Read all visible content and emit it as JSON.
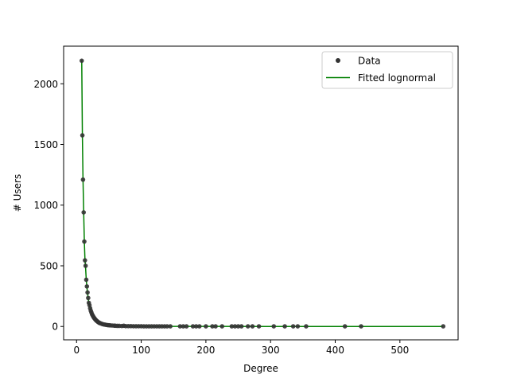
{
  "chart_data": {
    "type": "scatter",
    "title": "",
    "xlabel": "Degree",
    "ylabel": "# Users",
    "xlim": [
      -20,
      590
    ],
    "ylim": [
      -110,
      2310
    ],
    "xticks": [
      0,
      100,
      200,
      300,
      400,
      500
    ],
    "yticks": [
      0,
      500,
      1000,
      1500,
      2000
    ],
    "grid": false,
    "legend": {
      "placement": "top-right",
      "entries": [
        "Data",
        "Fitted lognormal"
      ]
    },
    "series": [
      {
        "name": "Data",
        "kind": "scatter",
        "color": "#333333",
        "points": [
          [
            8,
            2190
          ],
          [
            9,
            1575
          ],
          [
            10,
            1210
          ],
          [
            11,
            940
          ],
          [
            12,
            700
          ],
          [
            13,
            545
          ],
          [
            14,
            500
          ],
          [
            15,
            385
          ],
          [
            16,
            330
          ],
          [
            17,
            280
          ],
          [
            18,
            235
          ],
          [
            19,
            195
          ],
          [
            20,
            175
          ],
          [
            21,
            150
          ],
          [
            22,
            130
          ],
          [
            23,
            115
          ],
          [
            24,
            100
          ],
          [
            25,
            90
          ],
          [
            26,
            80
          ],
          [
            27,
            72
          ],
          [
            28,
            65
          ],
          [
            29,
            58
          ],
          [
            30,
            52
          ],
          [
            31,
            47
          ],
          [
            32,
            42
          ],
          [
            33,
            38
          ],
          [
            34,
            34
          ],
          [
            35,
            31
          ],
          [
            36,
            28
          ],
          [
            38,
            24
          ],
          [
            40,
            20
          ],
          [
            42,
            17
          ],
          [
            44,
            15
          ],
          [
            46,
            13
          ],
          [
            48,
            11
          ],
          [
            50,
            10
          ],
          [
            52,
            9
          ],
          [
            55,
            8
          ],
          [
            58,
            7
          ],
          [
            60,
            6
          ],
          [
            63,
            5
          ],
          [
            66,
            5
          ],
          [
            70,
            4
          ],
          [
            73,
            6
          ],
          [
            76,
            3
          ],
          [
            80,
            3
          ],
          [
            84,
            3
          ],
          [
            88,
            2
          ],
          [
            92,
            2
          ],
          [
            96,
            2
          ],
          [
            100,
            2
          ],
          [
            104,
            1
          ],
          [
            108,
            1
          ],
          [
            112,
            1
          ],
          [
            116,
            1
          ],
          [
            120,
            1
          ],
          [
            124,
            1
          ],
          [
            128,
            1
          ],
          [
            132,
            1
          ],
          [
            136,
            1
          ],
          [
            140,
            1
          ],
          [
            145,
            1
          ],
          [
            160,
            1
          ],
          [
            165,
            1
          ],
          [
            170,
            1
          ],
          [
            180,
            1
          ],
          [
            185,
            1
          ],
          [
            190,
            1
          ],
          [
            200,
            1
          ],
          [
            210,
            1
          ],
          [
            215,
            1
          ],
          [
            225,
            1
          ],
          [
            240,
            1
          ],
          [
            245,
            1
          ],
          [
            250,
            1
          ],
          [
            255,
            1
          ],
          [
            265,
            1
          ],
          [
            272,
            1
          ],
          [
            282,
            1
          ],
          [
            305,
            1
          ],
          [
            322,
            1
          ],
          [
            335,
            1
          ],
          [
            342,
            1
          ],
          [
            355,
            1
          ],
          [
            415,
            1
          ],
          [
            440,
            1
          ],
          [
            567,
            1
          ]
        ]
      },
      {
        "name": "Fitted lognormal",
        "kind": "line",
        "color": "#008000",
        "points": [
          [
            8,
            2195
          ],
          [
            9,
            1580
          ],
          [
            10,
            1205
          ],
          [
            11,
            945
          ],
          [
            12,
            710
          ],
          [
            13,
            550
          ],
          [
            14,
            480
          ],
          [
            15,
            385
          ],
          [
            16,
            325
          ],
          [
            17,
            275
          ],
          [
            18,
            230
          ],
          [
            19,
            195
          ],
          [
            20,
            170
          ],
          [
            22,
            130
          ],
          [
            24,
            100
          ],
          [
            26,
            80
          ],
          [
            28,
            64
          ],
          [
            30,
            52
          ],
          [
            33,
            38
          ],
          [
            36,
            28
          ],
          [
            40,
            20
          ],
          [
            45,
            14
          ],
          [
            50,
            10
          ],
          [
            60,
            6
          ],
          [
            70,
            4
          ],
          [
            80,
            3
          ],
          [
            100,
            2
          ],
          [
            120,
            1
          ],
          [
            150,
            1
          ],
          [
            200,
            0.5
          ],
          [
            300,
            0.2
          ],
          [
            400,
            0.1
          ],
          [
            567,
            0
          ]
        ]
      }
    ]
  }
}
